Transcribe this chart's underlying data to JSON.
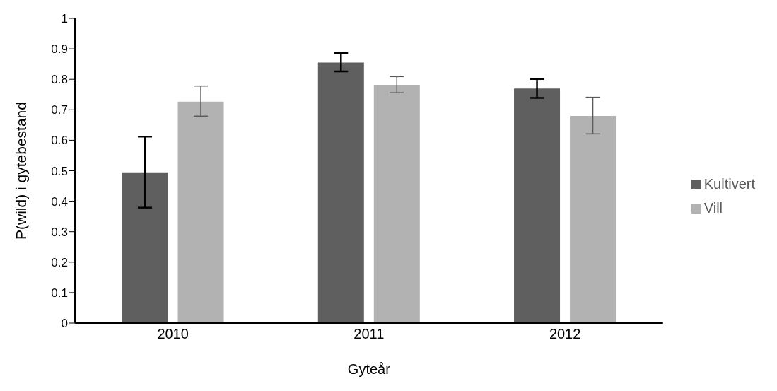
{
  "chart_data": {
    "type": "bar",
    "xlabel": "Gyteår",
    "ylabel": "P(wild) i gytebestand",
    "categories": [
      "2010",
      "2011",
      "2012"
    ],
    "series": [
      {
        "name": "Kultivert",
        "color": "#5f5f5f",
        "values": [
          0.495,
          0.855,
          0.77
        ],
        "errors": [
          [
            0.379,
            0.612
          ],
          [
            0.826,
            0.886
          ],
          [
            0.739,
            0.801
          ]
        ]
      },
      {
        "name": "Vill",
        "color": "#b2b2b2",
        "values": [
          0.727,
          0.782,
          0.68
        ],
        "errors": [
          [
            0.679,
            0.778
          ],
          [
            0.756,
            0.809
          ],
          [
            0.621,
            0.741
          ]
        ]
      }
    ],
    "ylim": [
      0,
      1
    ],
    "yticks": [
      0,
      0.1,
      0.2,
      0.3,
      0.4,
      0.5,
      0.6,
      0.7,
      0.8,
      0.9,
      1
    ],
    "grid": false,
    "legend": "right"
  }
}
